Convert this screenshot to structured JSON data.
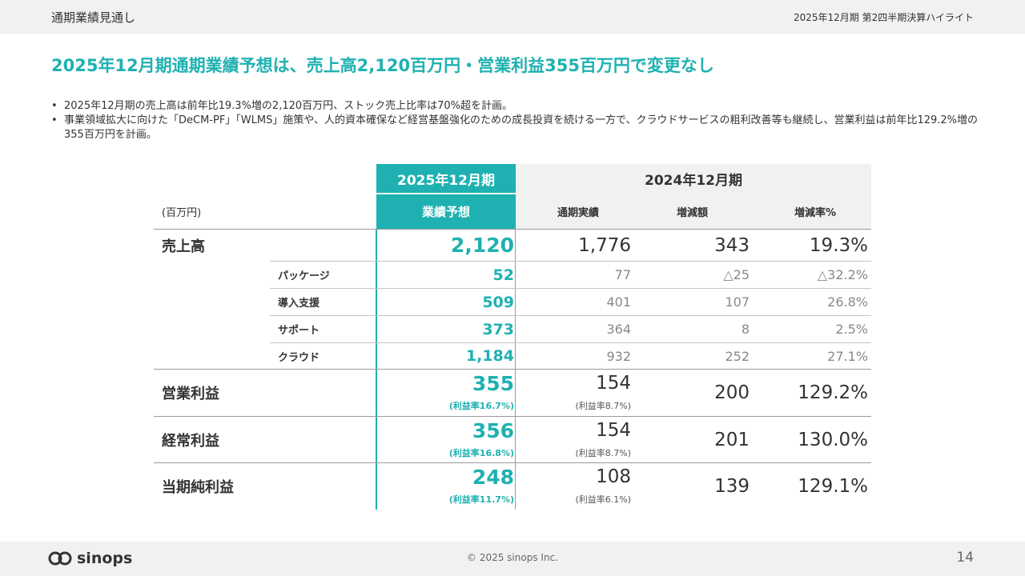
{
  "header": {
    "section_title": "通期業績見通し",
    "deck_title": "2025年12月期 第2四半期決算ハイライト"
  },
  "headline": "2025年12月期通期業績予想は、売上高2,120百万円・営業利益355百万円で変更なし",
  "bullets": [
    "2025年12月期の売上高は前年比19.3%増の2,120百万円、ストック売上比率は70%超を計画。",
    "事業領域拡大に向けた「DeCM-PF」「WLMS」施策や、人的資本確保など経営基盤強化のための成長投資を続ける一方で、クラウドサービスの粗利改善等も継続し、営業利益は前年比129.2%増の355百万円を計画。"
  ],
  "table": {
    "unit": "(百万円)",
    "fy2025": "2025年12月期",
    "fy2025_sub": "業績予想",
    "fy2024": "2024年12月期",
    "fy2024_cols": [
      "通期実績",
      "増減額",
      "増減率%"
    ],
    "rows": {
      "sales": {
        "label": "売上高",
        "forecast": "2,120",
        "actual": "1,776",
        "change": "343",
        "rate": "19.3%"
      },
      "package": {
        "label": "パッケージ",
        "forecast": "52",
        "actual": "77",
        "change": "△25",
        "rate": "△32.2%"
      },
      "intro": {
        "label": "導入支援",
        "forecast": "509",
        "actual": "401",
        "change": "107",
        "rate": "26.8%"
      },
      "support": {
        "label": "サポート",
        "forecast": "373",
        "actual": "364",
        "change": "8",
        "rate": "2.5%"
      },
      "cloud": {
        "label": "クラウド",
        "forecast": "1,184",
        "actual": "932",
        "change": "252",
        "rate": "27.1%"
      },
      "op": {
        "label": "営業利益",
        "forecast": "355",
        "forecast_margin": "(利益率16.7%)",
        "actual": "154",
        "actual_margin": "(利益率8.7%)",
        "change": "200",
        "rate": "129.2%"
      },
      "ord": {
        "label": "経常利益",
        "forecast": "356",
        "forecast_margin": "(利益率16.8%)",
        "actual": "154",
        "actual_margin": "(利益率8.7%)",
        "change": "201",
        "rate": "130.0%"
      },
      "net": {
        "label": "当期純利益",
        "forecast": "248",
        "forecast_margin": "(利益率11.7%)",
        "actual": "108",
        "actual_margin": "(利益率6.1%)",
        "change": "139",
        "rate": "129.1%"
      }
    }
  },
  "footer": {
    "logo_text": "sinops",
    "copyright": "© 2025 sinops Inc.",
    "page_number": "14"
  },
  "colors": {
    "accent": "#1fb1b1",
    "bar": "#f0f1f1"
  }
}
